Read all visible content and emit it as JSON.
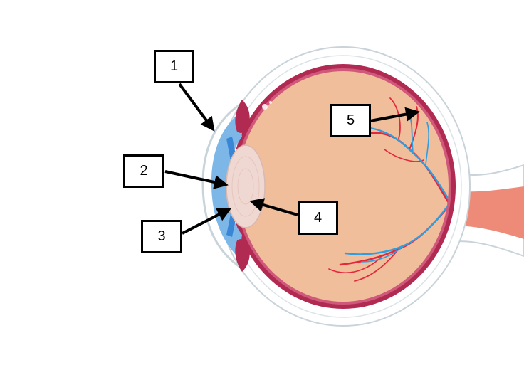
{
  "labels": [
    {
      "number": "1"
    },
    {
      "number": "2"
    },
    {
      "number": "3"
    },
    {
      "number": "4"
    },
    {
      "number": "5"
    }
  ],
  "colors": {
    "sclera_outline": "#c9d3da",
    "choroid": "#b02a52",
    "retina": "#d0587a",
    "vitreous": "#f1be9c",
    "cornea_blue": "#7db7e8",
    "iris_blue": "#3a86d6",
    "lens": "#f0d8d2",
    "artery": "#e3283c",
    "vein": "#2f9ee0",
    "optic_nerve": "#ee8a78",
    "arrow": "#000000"
  }
}
